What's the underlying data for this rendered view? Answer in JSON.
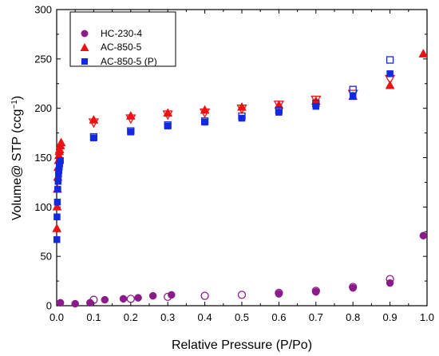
{
  "chart_data": {
    "type": "scatter",
    "xlabel": "Relative Pressure (P/Po)",
    "ylabel_main": "Volume@ STP (ccg",
    "ylabel_sup": "−1",
    "ylabel_close": ")",
    "xlim": [
      0.0,
      1.0
    ],
    "ylim": [
      0,
      300
    ],
    "xticks": [
      0.0,
      0.1,
      0.2,
      0.3,
      0.4,
      0.5,
      0.6,
      0.7,
      0.8,
      0.9,
      1.0
    ],
    "xtick_labels": [
      "0.0",
      "0.1",
      "0.2",
      "0.3",
      "0.4",
      "0.5",
      "0.6",
      "0.7",
      "0.8",
      "0.9",
      "1.0"
    ],
    "yticks": [
      0,
      50,
      100,
      150,
      200,
      250,
      300
    ],
    "ytick_labels": [
      "0",
      "50",
      "100",
      "150",
      "200",
      "250",
      "300"
    ],
    "legend_position": "top-left",
    "series": [
      {
        "name": "HC-230-4",
        "marker": "circle",
        "color": "#8B1A8B",
        "filled": [
          [
            0.01,
            3
          ],
          [
            0.05,
            2
          ],
          [
            0.09,
            3
          ],
          [
            0.13,
            6
          ],
          [
            0.18,
            7
          ],
          [
            0.22,
            8
          ],
          [
            0.26,
            10
          ],
          [
            0.31,
            11
          ],
          [
            0.6,
            12
          ],
          [
            0.7,
            14
          ],
          [
            0.8,
            18
          ],
          [
            0.9,
            23
          ],
          [
            0.99,
            71
          ]
        ],
        "open": [
          [
            0.1,
            6
          ],
          [
            0.2,
            7
          ],
          [
            0.3,
            9
          ],
          [
            0.4,
            10
          ],
          [
            0.5,
            11
          ],
          [
            0.6,
            13
          ],
          [
            0.7,
            15
          ],
          [
            0.8,
            19
          ],
          [
            0.9,
            27
          ]
        ]
      },
      {
        "name": "AC-850-5",
        "marker": "triangle",
        "color": "#EE1111",
        "filled": [
          [
            0.0005,
            78
          ],
          [
            0.001,
            100
          ],
          [
            0.002,
            118
          ],
          [
            0.003,
            130
          ],
          [
            0.004,
            140
          ],
          [
            0.005,
            147
          ],
          [
            0.006,
            152
          ],
          [
            0.007,
            156
          ],
          [
            0.008,
            158
          ],
          [
            0.01,
            162
          ],
          [
            0.012,
            165
          ],
          [
            0.1,
            188
          ],
          [
            0.2,
            192
          ],
          [
            0.3,
            195
          ],
          [
            0.4,
            198
          ],
          [
            0.5,
            201
          ],
          [
            0.6,
            203
          ],
          [
            0.7,
            207
          ],
          [
            0.8,
            212
          ],
          [
            0.9,
            223
          ],
          [
            0.99,
            255
          ]
        ],
        "open": [
          [
            0.1,
            186
          ],
          [
            0.2,
            190
          ],
          [
            0.3,
            194
          ],
          [
            0.4,
            196
          ],
          [
            0.5,
            200
          ],
          [
            0.6,
            204
          ],
          [
            0.7,
            209
          ],
          [
            0.8,
            215
          ],
          [
            0.9,
            230
          ]
        ]
      },
      {
        "name": "AC-850-5 (P)",
        "marker": "square",
        "color": "#1428E0",
        "filled": [
          [
            0.0005,
            67
          ],
          [
            0.001,
            90
          ],
          [
            0.002,
            105
          ],
          [
            0.003,
            118
          ],
          [
            0.004,
            126
          ],
          [
            0.005,
            133
          ],
          [
            0.006,
            137
          ],
          [
            0.007,
            141
          ],
          [
            0.008,
            144
          ],
          [
            0.01,
            147
          ],
          [
            0.1,
            170
          ],
          [
            0.2,
            176
          ],
          [
            0.3,
            182
          ],
          [
            0.4,
            186
          ],
          [
            0.5,
            190
          ],
          [
            0.6,
            196
          ],
          [
            0.7,
            202
          ],
          [
            0.8,
            212
          ],
          [
            0.9,
            235
          ]
        ],
        "open": [
          [
            0.1,
            171
          ],
          [
            0.2,
            177
          ],
          [
            0.3,
            183
          ],
          [
            0.4,
            187
          ],
          [
            0.5,
            192
          ],
          [
            0.6,
            198
          ],
          [
            0.7,
            205
          ],
          [
            0.8,
            219
          ],
          [
            0.9,
            249
          ]
        ]
      }
    ]
  }
}
